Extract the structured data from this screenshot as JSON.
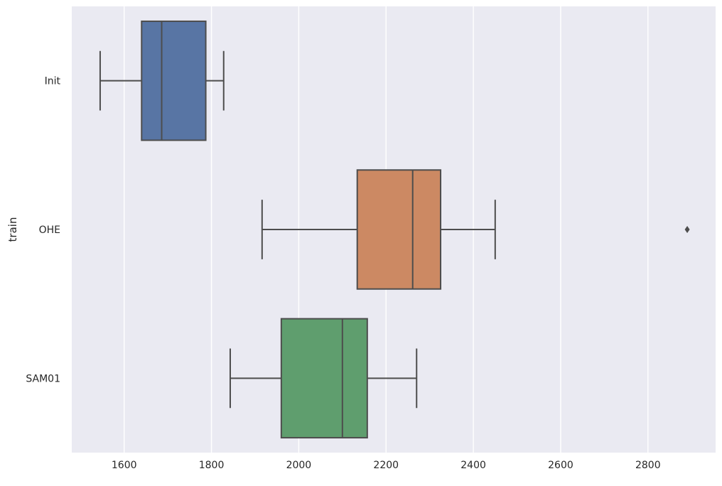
{
  "chart_data": {
    "type": "box",
    "orientation": "horizontal",
    "xlabel": "",
    "ylabel": "train",
    "xlim": [
      1480,
      2955
    ],
    "xticks": [
      1600,
      1800,
      2000,
      2200,
      2400,
      2600,
      2800
    ],
    "grid": true,
    "background": "#EAEAF2",
    "categories": [
      "Init",
      "OHE",
      "SAM01"
    ],
    "boxes": [
      {
        "label": "Init",
        "whisker_low": 1545,
        "q1": 1640,
        "median": 1686,
        "q3": 1787,
        "whisker_high": 1828,
        "outliers": [],
        "color": "#5875A4"
      },
      {
        "label": "OHE",
        "whisker_low": 1916,
        "q1": 2134,
        "median": 2261,
        "q3": 2325,
        "whisker_high": 2450,
        "outliers": [
          2890
        ],
        "color": "#CC8963"
      },
      {
        "label": "SAM01",
        "whisker_low": 1843,
        "q1": 1960,
        "median": 2100,
        "q3": 2157,
        "whisker_high": 2270,
        "outliers": [],
        "color": "#5F9E6E"
      }
    ],
    "line_color": "#4D4D4D"
  }
}
